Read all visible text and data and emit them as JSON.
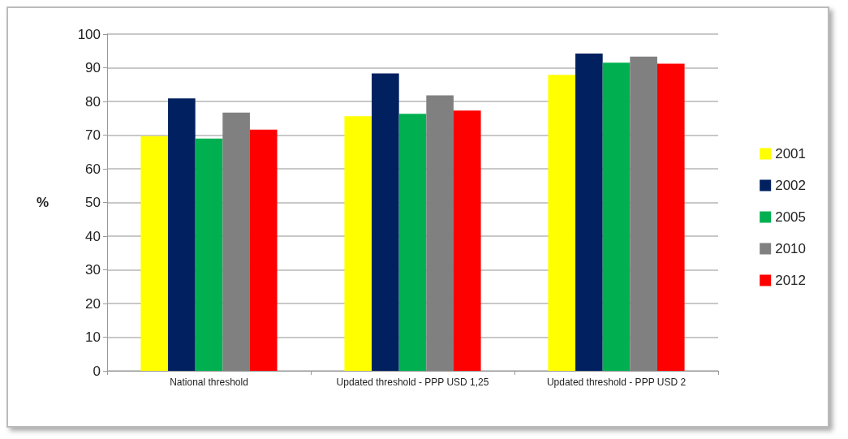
{
  "chart_data": {
    "type": "bar",
    "ylabel": "%",
    "categories": [
      "National threshold",
      "Updated threshold - PPP USD 1,25",
      "Updated threshold - PPP USD 2"
    ],
    "series": [
      {
        "name": "2001",
        "color": "#ffff00",
        "values": [
          69.7,
          75.6,
          87.9
        ]
      },
      {
        "name": "2002",
        "color": "#002060",
        "values": [
          80.9,
          88.3,
          94.2
        ]
      },
      {
        "name": "2005",
        "color": "#00b050",
        "values": [
          69,
          76.3,
          91.5
        ]
      },
      {
        "name": "2010",
        "color": "#808080",
        "values": [
          76.7,
          81.8,
          93.3
        ]
      },
      {
        "name": "2012",
        "color": "#ff0000",
        "values": [
          71.6,
          77.3,
          91.2
        ]
      }
    ],
    "ylim": [
      0,
      100
    ],
    "yticks": [
      0,
      10,
      20,
      30,
      40,
      50,
      60,
      70,
      80,
      90,
      100
    ],
    "grid": "y",
    "legend": "right"
  }
}
